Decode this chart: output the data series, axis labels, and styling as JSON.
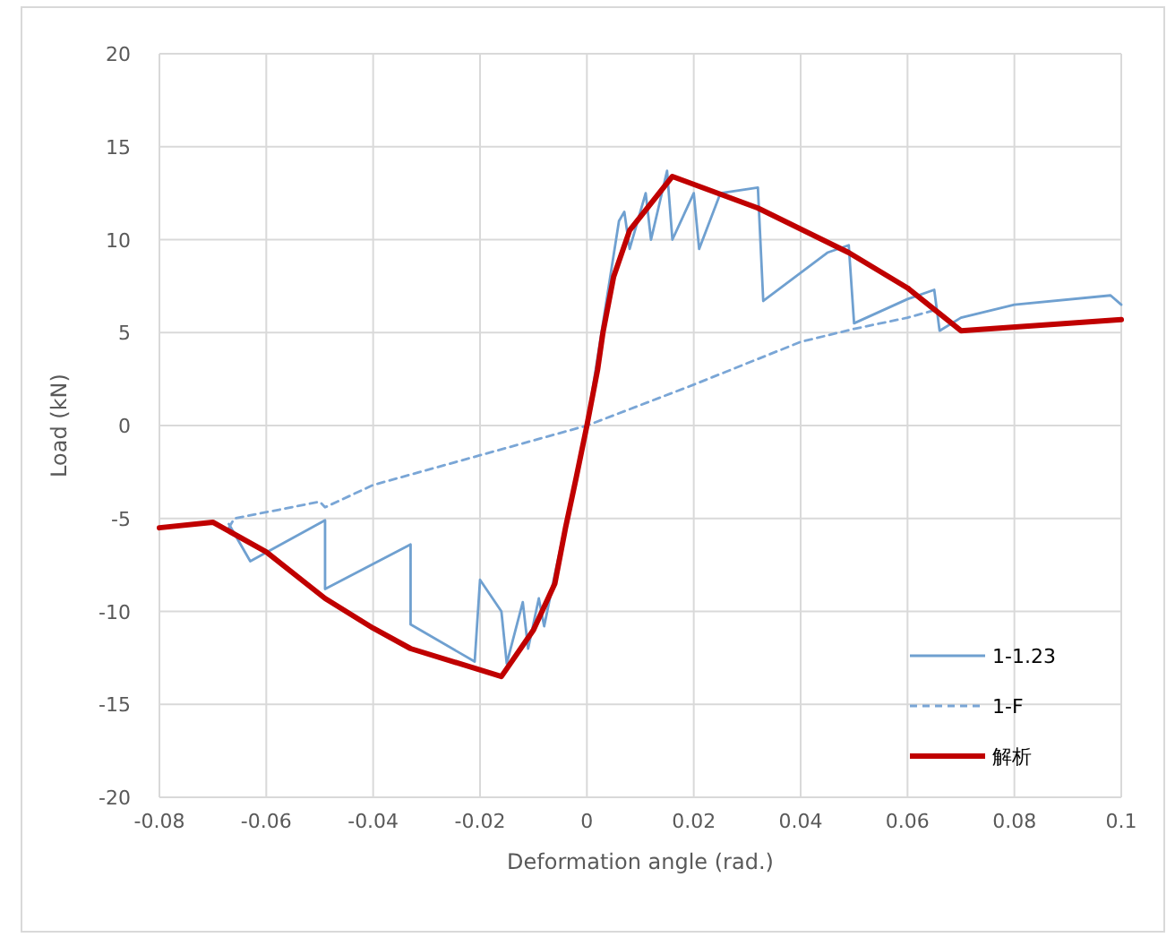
{
  "chart_data": {
    "type": "line",
    "xlabel": "Deformation angle (rad.)",
    "ylabel": "Load (kN)",
    "xlim": [
      -0.08,
      0.1
    ],
    "ylim": [
      -20,
      20
    ],
    "xticks": [
      -0.08,
      -0.06,
      -0.04,
      -0.02,
      0,
      0.02,
      0.04,
      0.06,
      0.08,
      0.1
    ],
    "yticks": [
      -20,
      -15,
      -10,
      -5,
      0,
      5,
      10,
      15,
      20
    ],
    "grid": true,
    "legend": "bottom right",
    "marker": "none",
    "series": [
      {
        "name": "1-1.23",
        "color": "#6fa0d0",
        "line_style": "solid",
        "x": [
          -0.067,
          -0.063,
          -0.049,
          -0.049,
          -0.033,
          -0.033,
          -0.021,
          -0.02,
          -0.016,
          -0.015,
          -0.012,
          -0.011,
          -0.009,
          -0.008,
          -0.006,
          0,
          0.006,
          0.007,
          0.008,
          0.011,
          0.012,
          0.015,
          0.016,
          0.02,
          0.021,
          0.025,
          0.032,
          0.033,
          0.045,
          0.049,
          0.05,
          0.06,
          0.065,
          0.066,
          0.07,
          0.08,
          0.098,
          0.1
        ],
        "values": [
          -5.3,
          -7.3,
          -5.1,
          -8.8,
          -6.4,
          -10.7,
          -12.7,
          -8.3,
          -10,
          -12.8,
          -9.5,
          -12,
          -9.3,
          -10.8,
          -8,
          0,
          11,
          11.5,
          9.5,
          12.5,
          10,
          13.7,
          10,
          12.5,
          9.5,
          12.5,
          12.8,
          6.7,
          9.3,
          9.7,
          5.5,
          6.8,
          7.3,
          5.1,
          5.8,
          6.5,
          7,
          6.5
        ]
      },
      {
        "name": "1-F",
        "color": "#7aa6d6",
        "line_style": "dashed",
        "x": [
          -0.067,
          -0.066,
          -0.05,
          -0.049,
          -0.04,
          -0.02,
          0,
          0.02,
          0.04,
          0.05,
          0.06,
          0.065
        ],
        "values": [
          -5.5,
          -5,
          -4.1,
          -4.4,
          -3.2,
          -1.6,
          0,
          2.2,
          4.5,
          5.2,
          5.8,
          6.2
        ]
      },
      {
        "name": "解析",
        "color": "#c00000",
        "line_style": "solid",
        "x": [
          -0.08,
          -0.07,
          -0.06,
          -0.049,
          -0.04,
          -0.033,
          -0.016,
          -0.01,
          -0.006,
          -0.004,
          -0.002,
          0,
          0.002,
          0.003,
          0.005,
          0.008,
          0.016,
          0.032,
          0.049,
          0.06,
          0.07,
          0.1
        ],
        "values": [
          -5.5,
          -5.2,
          -6.8,
          -9.3,
          -10.9,
          -12,
          -13.5,
          -11,
          -8.5,
          -5.5,
          -2.8,
          0,
          3,
          5,
          8,
          10.5,
          13.4,
          11.7,
          9.3,
          7.4,
          5.1,
          5.7
        ]
      }
    ]
  }
}
